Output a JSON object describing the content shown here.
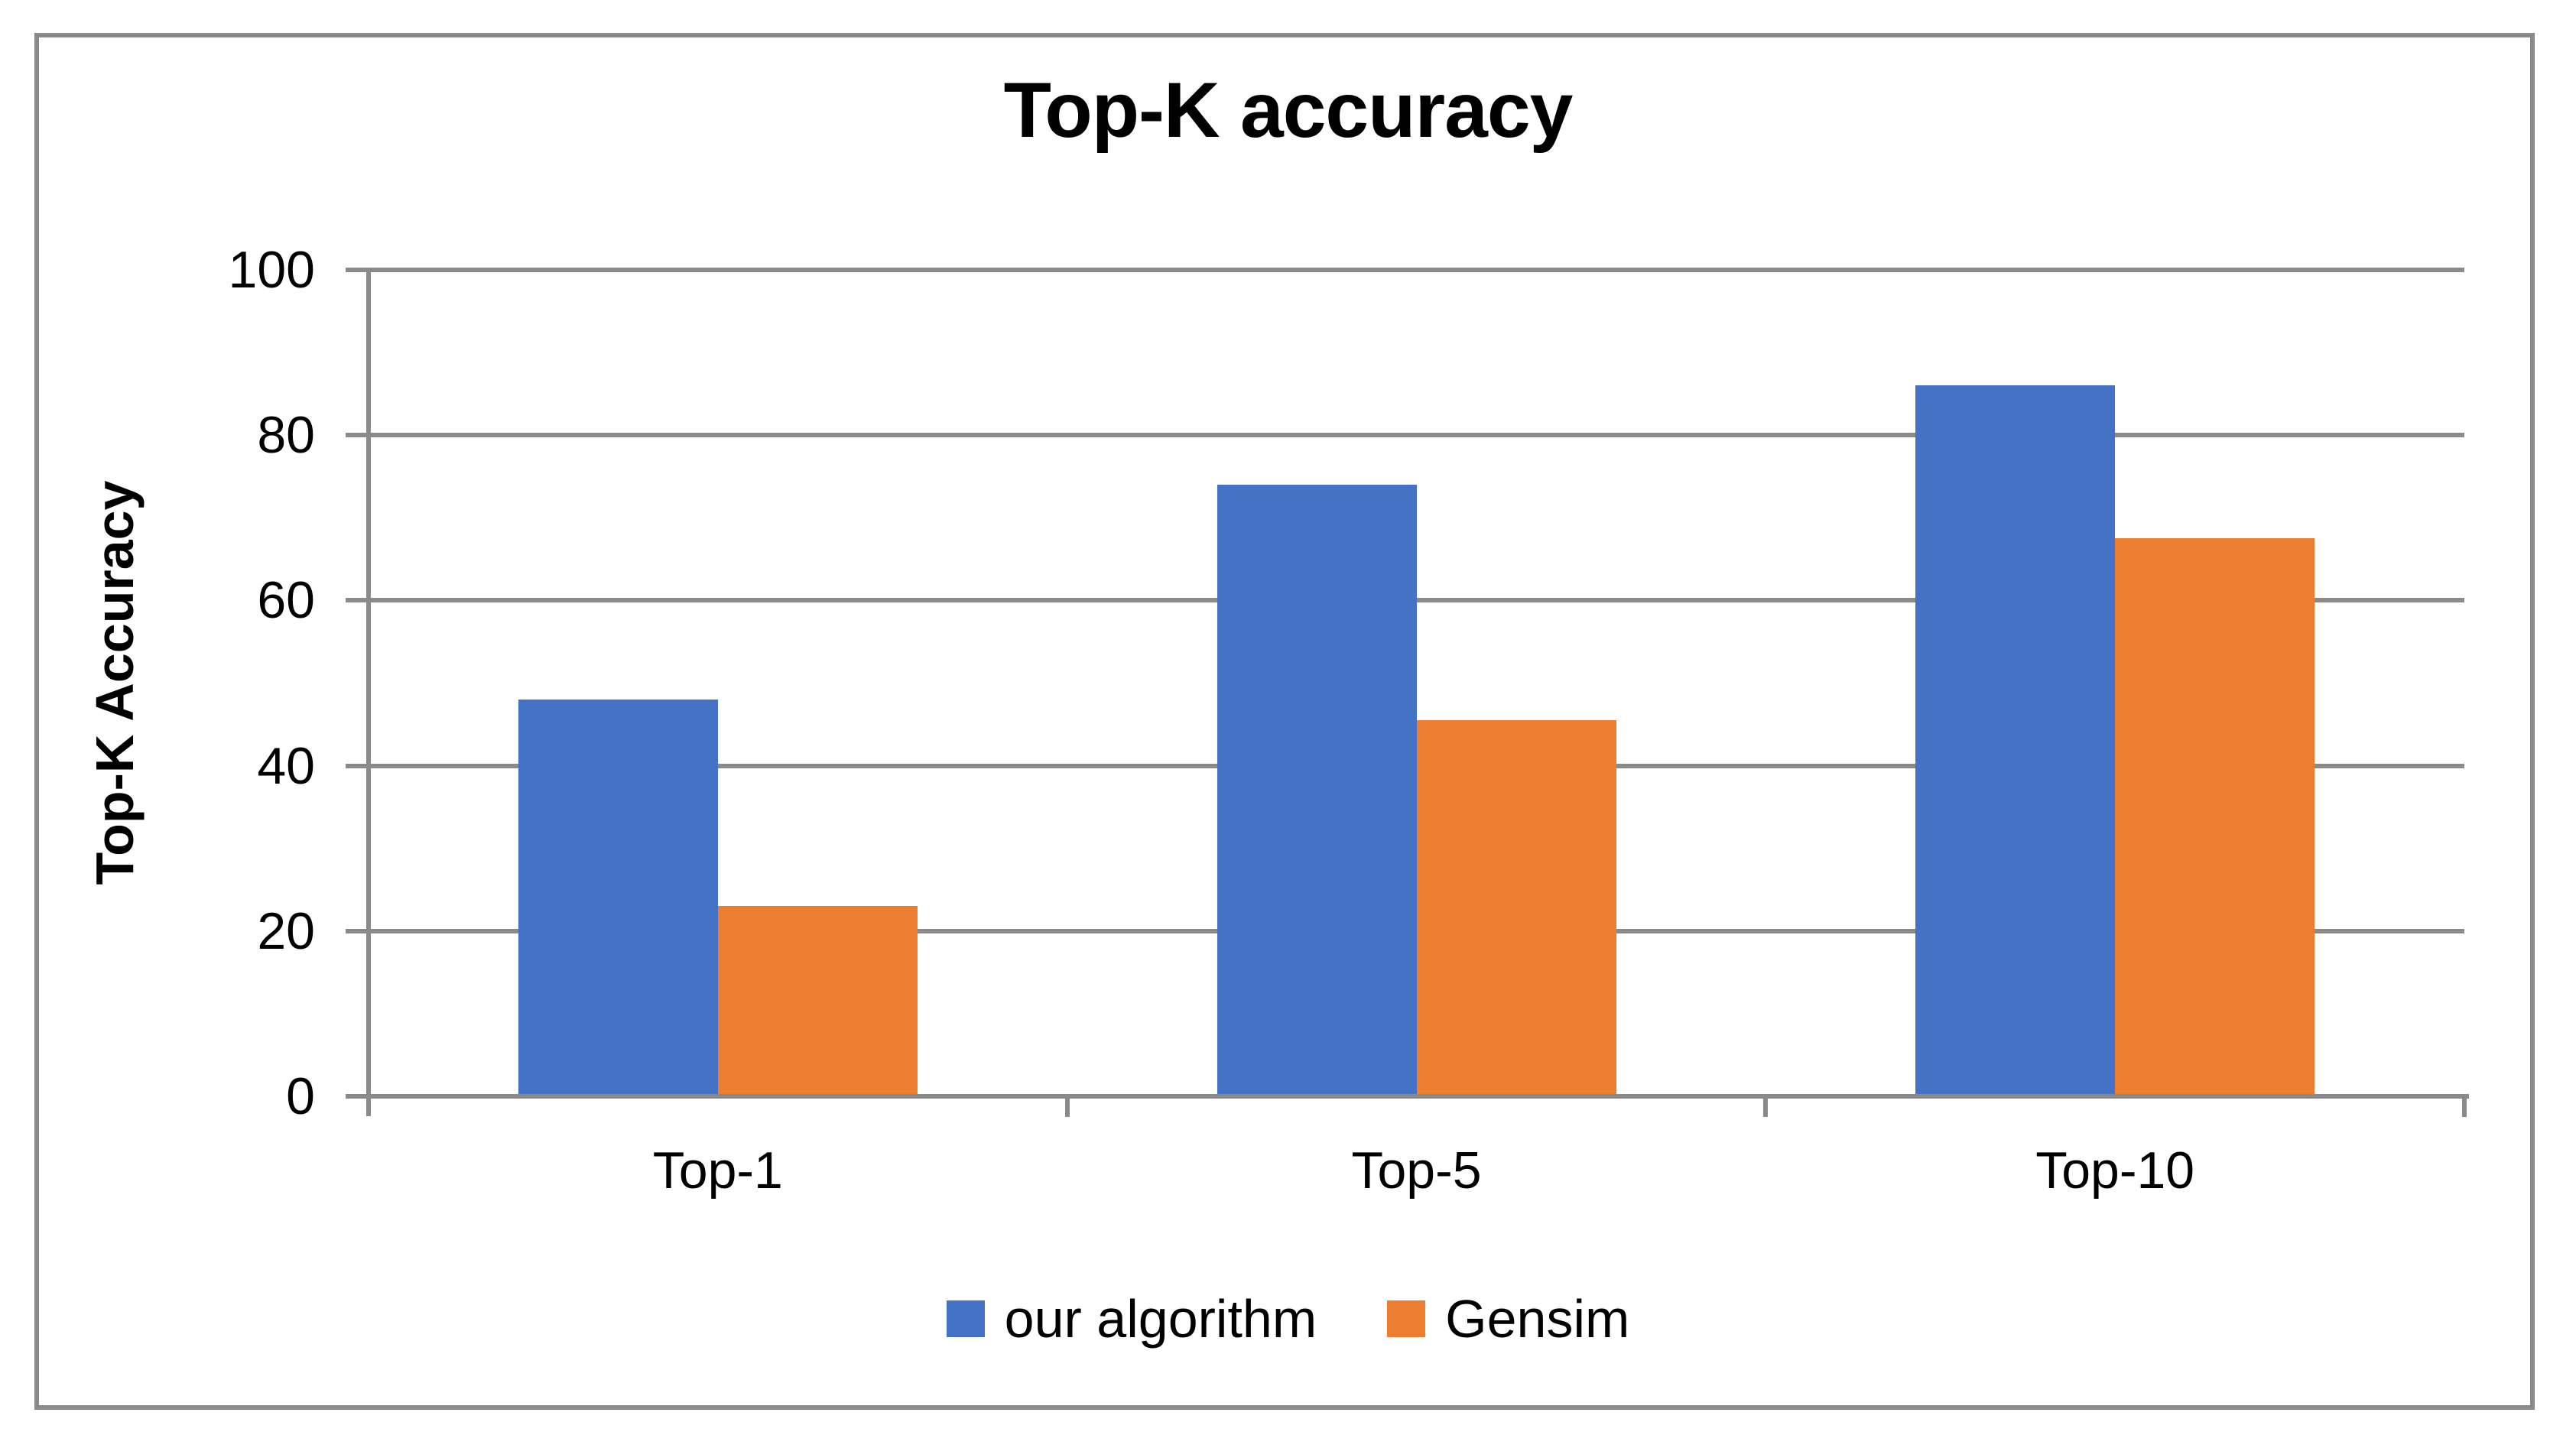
{
  "title": "Top-K accuracy",
  "colors": {
    "series_blue": "#4472C4",
    "series_orange": "#ED7D31",
    "axis_gray": "#8A8A8A",
    "text": "#000000",
    "background": "#FFFFFF"
  },
  "chart_data": {
    "type": "bar",
    "title": "Top-K accuracy",
    "categories": [
      "Top-1",
      "Top-5",
      "Top-10"
    ],
    "series": [
      {
        "name": "our algorithm",
        "color": "#4472C4",
        "values": [
          48,
          74,
          86
        ]
      },
      {
        "name": "Gensim",
        "color": "#ED7D31",
        "values": [
          23,
          45.5,
          67.5
        ]
      }
    ],
    "xlabel": "",
    "ylabel": "Top-K Accuracy",
    "ylim": [
      0,
      100
    ],
    "yticks": [
      0,
      20,
      40,
      60,
      80,
      100
    ],
    "grid": true,
    "legend_position": "bottom"
  }
}
